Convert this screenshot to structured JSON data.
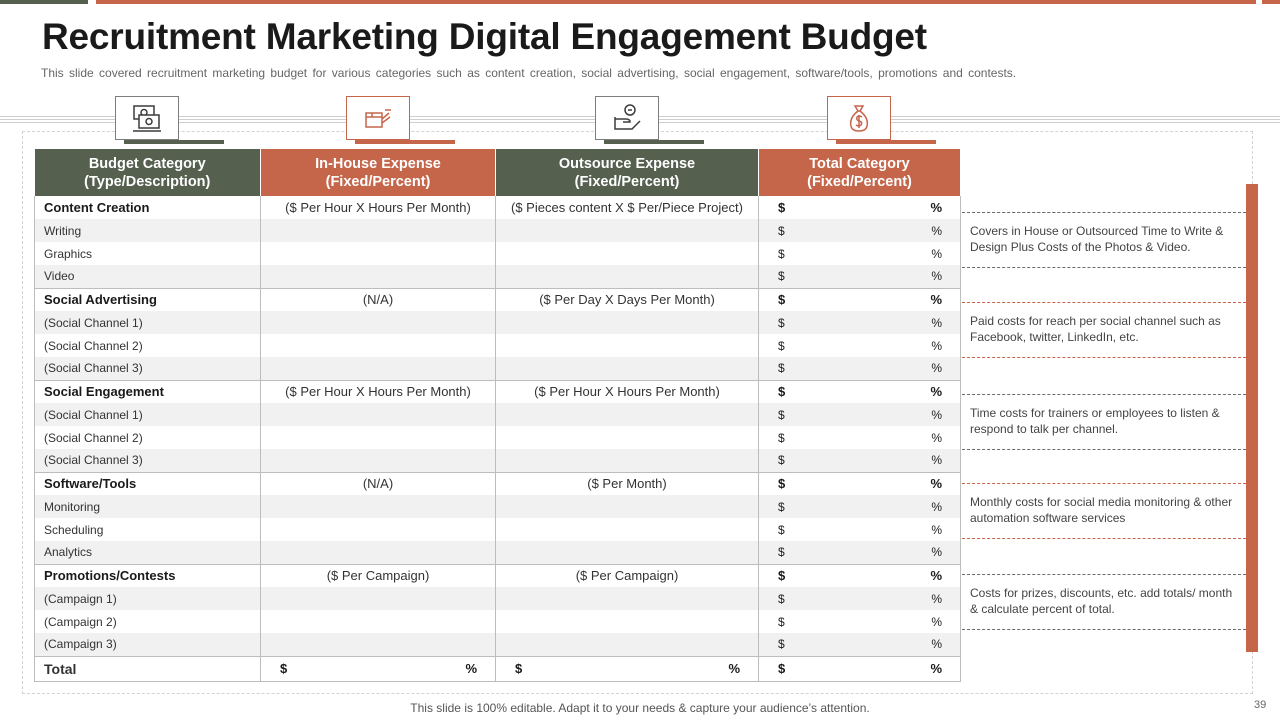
{
  "title": "Recruitment Marketing Digital Engagement Budget",
  "subtitle": "This slide covered recruitment marketing budget for various categories such as content creation, social advertising, social engagement, software/tools, promotions and contests.",
  "icons": [
    "money-bills-icon",
    "hand-box-icon",
    "hand-coin-icon",
    "money-bag-icon"
  ],
  "colors": {
    "primary": "#56604f",
    "accent": "#c5664b"
  },
  "table": {
    "headers": [
      {
        "line1": "Budget Category",
        "line2": "(Type/Description)"
      },
      {
        "line1": "In-House Expense",
        "line2": "(Fixed/Percent)"
      },
      {
        "line1": "Outsource Expense",
        "line2": "(Fixed/Percent)"
      },
      {
        "line1": "Total Category",
        "line2": "(Fixed/Percent)"
      }
    ],
    "dollar": "$",
    "percent": "%",
    "groups": [
      {
        "name": "Content Creation",
        "inhouse": "($ Per Hour X Hours Per Month)",
        "outsource": "($ Pieces content X $ Per/Piece Project)",
        "items": [
          "Writing",
          "Graphics",
          "Video"
        ]
      },
      {
        "name": "Social Advertising",
        "inhouse": "(N/A)",
        "outsource": "($ Per Day X Days Per Month)",
        "items": [
          "(Social Channel 1)",
          "(Social Channel 2)",
          "(Social Channel 3)"
        ]
      },
      {
        "name": "Social Engagement",
        "inhouse": "($ Per Hour X Hours Per Month)",
        "outsource": "($ Per Hour X Hours Per Month)",
        "items": [
          "(Social Channel 1)",
          "(Social Channel 2)",
          "(Social Channel 3)"
        ]
      },
      {
        "name": "Software/Tools",
        "inhouse": "(N/A)",
        "outsource": "($ Per Month)",
        "items": [
          "Monitoring",
          "Scheduling",
          "Analytics"
        ]
      },
      {
        "name": "Promotions/Contests",
        "inhouse": "($ Per Campaign)",
        "outsource": "($ Per Campaign)",
        "items": [
          "(Campaign 1)",
          "(Campaign 2)",
          "(Campaign 3)"
        ]
      }
    ],
    "total_label": "Total"
  },
  "notes": [
    "Covers in House or Outsourced Time to Write & Design Plus Costs of the Photos & Video.",
    "Paid costs for reach per social channel such as Facebook, twitter, LinkedIn, etc.",
    "Time costs for trainers or employees to listen & respond to talk per channel.",
    "Monthly costs for social media monitoring & other automation software services",
    "Costs for prizes, discounts, etc. add totals/ month & calculate percent of total."
  ],
  "footer": "This slide is 100% editable. Adapt it to your needs & capture your audience’s attention.",
  "page_number": "39"
}
